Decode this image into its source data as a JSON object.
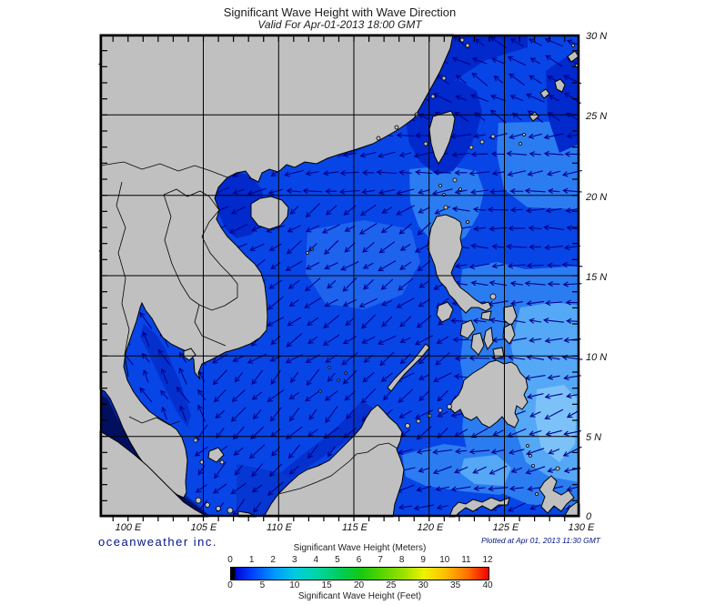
{
  "header": {
    "title": "Significant Wave Height with Wave Direction",
    "subtitle": "Valid For Apr-01-2013 18:00 GMT"
  },
  "map": {
    "lat_labels": [
      "30 N",
      "25 N",
      "20 N",
      "15 N",
      "10 N",
      "5 N",
      "0"
    ],
    "lon_labels": [
      "100 E",
      "105 E",
      "110 E",
      "115 E",
      "120 E",
      "125 E",
      "130 E"
    ]
  },
  "branding": "oceanweather inc.",
  "plotted_at": "Plotted at Apr 01, 2013 11:30 GMT",
  "legend": {
    "meters_label": "Significant Wave Height (Meters)",
    "meters_ticks": [
      "0",
      "1",
      "2",
      "3",
      "4",
      "5",
      "6",
      "7",
      "8",
      "9",
      "10",
      "11",
      "12"
    ],
    "feet_label": "Significant Wave Height (Feet)",
    "feet_ticks": [
      "0",
      "5",
      "10",
      "15",
      "20",
      "25",
      "30",
      "35",
      "40"
    ]
  },
  "colors": {
    "land": "#c0c0c0",
    "coastline": "#000000",
    "grid": "#000000",
    "arrow": "#00008c",
    "text_navy": "#001489",
    "ocean_base": "#0845e6",
    "ocean_dark": "#0129cc",
    "ocean_very_dark": "#000f5e",
    "ocean_light": "#2b7cf1",
    "ocean_lighter": "#55a8f6"
  },
  "chart_data": {
    "type": "map",
    "quantity": "significant_wave_height_with_wave_direction",
    "region": "South China Sea / Western Pacific, 98E-130E, 0N-30N",
    "valid_time": "Apr-01-2013 18:00 GMT",
    "height_scale_meters": [
      0,
      1,
      2,
      3,
      4,
      5,
      6,
      7,
      8,
      9,
      10,
      11,
      12
    ],
    "height_scale_feet": [
      0,
      5,
      10,
      15,
      20,
      25,
      30,
      35,
      40
    ],
    "depicted_height_range_m": [
      0,
      3
    ],
    "wave_direction_zones": [
      {
        "name": "malacca-andaman",
        "lon": [
          98,
          101
        ],
        "lat": [
          0,
          9.5
        ],
        "skip": true
      },
      {
        "name": "malacca-strait",
        "lon": [
          101,
          104.3
        ],
        "lat": [
          0,
          6
        ],
        "skip": true
      },
      {
        "name": "east-china-sea",
        "lon": [
          117.5,
          130
        ],
        "lat": [
          24.5,
          30
        ],
        "toward_deg": 300
      },
      {
        "name": "gulf-of-thailand",
        "lon": [
          98,
          105
        ],
        "lat": [
          5.5,
          13.8
        ],
        "toward_deg": 330
      },
      {
        "name": "gulf-of-tonkin",
        "lon": [
          104,
          110.5
        ],
        "lat": [
          16.5,
          22
        ],
        "toward_deg": 245
      },
      {
        "name": "ne-scs-n-philippine-sea",
        "lon": [
          110,
          130
        ],
        "lat": [
          19.5,
          24.5
        ],
        "toward_deg": 265
      },
      {
        "name": "philippine-sea-se",
        "lon": [
          123.5,
          130
        ],
        "lat": [
          4,
          8
        ],
        "toward_deg": 250
      },
      {
        "name": "philippine-sea",
        "lon": [
          121.8,
          130
        ],
        "lat": [
          8,
          19.5
        ],
        "toward_deg": 270
      },
      {
        "name": "central-scs",
        "lon": [
          105,
          121.8
        ],
        "lat": [
          9,
          19.5
        ],
        "toward_deg": 235
      },
      {
        "name": "south-scs",
        "lon": [
          102,
          117.5
        ],
        "lat": [
          0,
          9
        ],
        "toward_deg": 225
      },
      {
        "name": "sulu-sea",
        "lon": [
          117.5,
          122
        ],
        "lat": [
          4.5,
          9
        ],
        "toward_deg": 235
      },
      {
        "name": "celebes-sea",
        "lon": [
          116.5,
          130
        ],
        "lat": [
          0,
          4.5
        ],
        "toward_deg": 255
      },
      {
        "name": "default",
        "lon": [
          98,
          130
        ],
        "lat": [
          0,
          30
        ],
        "toward_deg": 250
      }
    ]
  }
}
